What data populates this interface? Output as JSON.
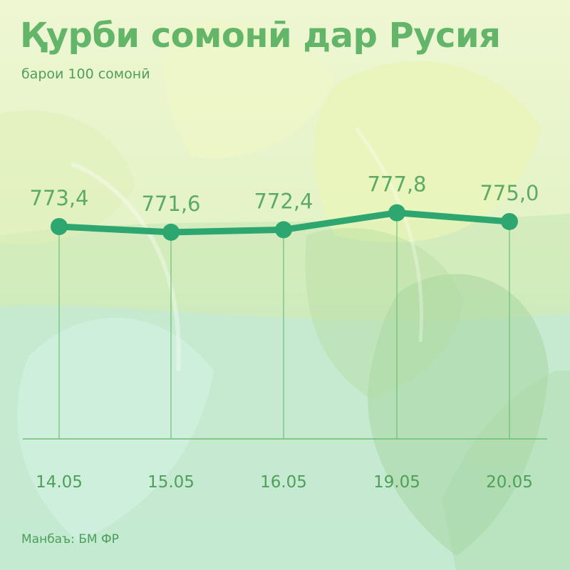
{
  "title": "Қурби сомонӣ дар Русия",
  "subtitle": "барои 100 сомонӣ",
  "source": "Манбаъ: БМ ФР",
  "colors": {
    "line": "#2ea66f",
    "title": "#63b56a",
    "text": "#4f9f5a",
    "gridline": "#6fbf76"
  },
  "chart_data": {
    "type": "line",
    "title": "Қурби сомонӣ дар Русия",
    "subtitle": "барои 100 сомонӣ",
    "categories": [
      "14.05",
      "15.05",
      "16.05",
      "19.05",
      "20.05"
    ],
    "values": [
      773.4,
      771.6,
      772.4,
      777.8,
      775.0
    ],
    "data_labels": [
      "773,4",
      "771,6",
      "772,4",
      "777,8",
      "775,0"
    ],
    "grid": false,
    "legend": "none"
  }
}
